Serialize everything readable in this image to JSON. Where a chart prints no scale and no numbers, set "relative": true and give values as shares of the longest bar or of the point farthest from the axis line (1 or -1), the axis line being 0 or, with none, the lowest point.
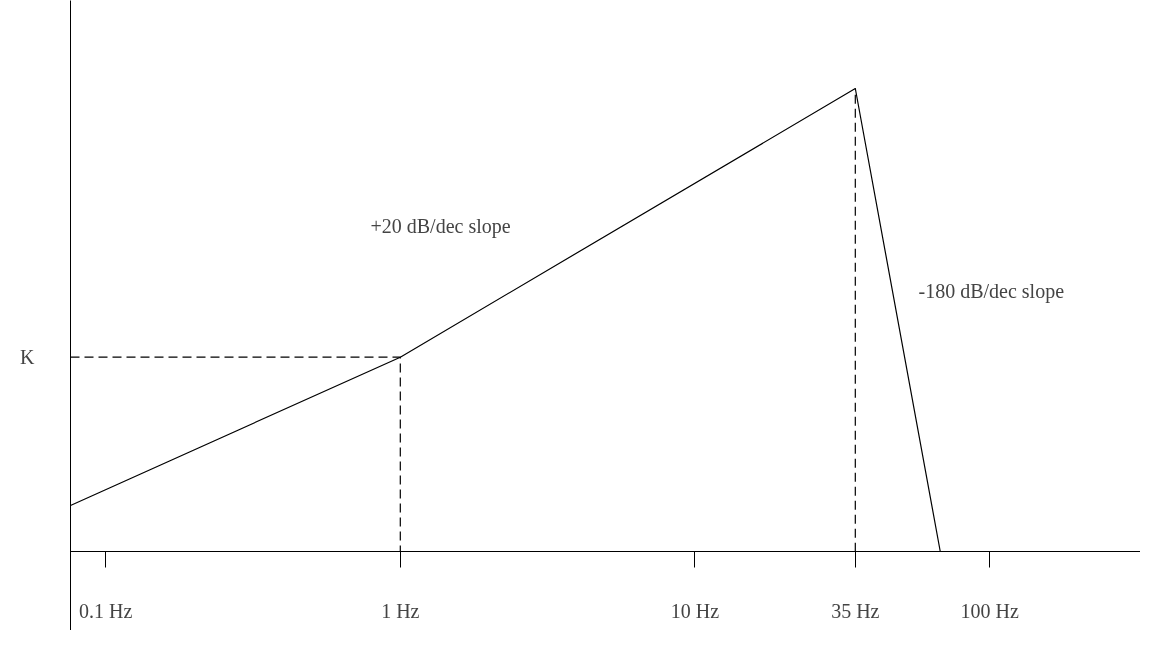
{
  "chart_data": {
    "type": "line",
    "relative": true,
    "log": "x",
    "xlim": [
      0.076,
      325
    ],
    "xticks": [
      {
        "value": 0.1,
        "label": "0.1 Hz"
      },
      {
        "value": 1,
        "label": "1 Hz"
      },
      {
        "value": 10,
        "label": "10 Hz"
      },
      {
        "value": 35,
        "label": "35 Hz"
      },
      {
        "value": 100,
        "label": "100 Hz"
      }
    ],
    "series": [
      {
        "color": "#000000",
        "line_style": "solid",
        "x": [
          0.076,
          1,
          35,
          68
        ],
        "values": [
          0.1,
          0.42,
          1,
          0
        ]
      },
      {
        "color": "#000000",
        "line_style": "dashed",
        "x": [
          0.076,
          1,
          1
        ],
        "values": [
          0.42,
          0.42,
          0
        ]
      }
    ],
    "ref_lines": [
      {
        "axis": "x",
        "value": 35,
        "color": "#000000",
        "line_style": "dashed"
      }
    ],
    "annotations": [
      {
        "text": "K",
        "x": 0.076,
        "y": 0.42
      },
      "+20 dB/dec slope",
      "-180 dB/dec slope"
    ],
    "marker": "none"
  }
}
